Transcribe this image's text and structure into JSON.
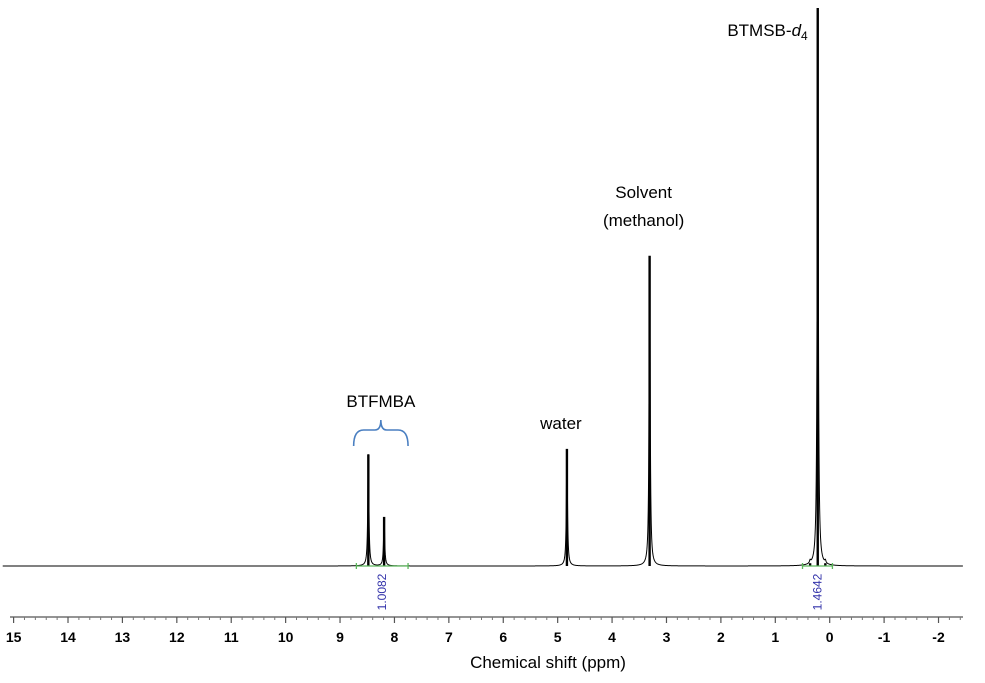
{
  "chart_data": {
    "type": "line",
    "xlabel": "Chemical shift (ppm)",
    "ylabel": "",
    "xlim": [
      15.25,
      -2.45
    ],
    "x_reversed": true,
    "ylim": [
      0,
      1
    ],
    "grid": false,
    "x_ticks": [
      15,
      14,
      13,
      12,
      11,
      10,
      9,
      8,
      7,
      6,
      5,
      4,
      3,
      2,
      1,
      0,
      -1,
      -2
    ],
    "x_tick_labels": [
      "15",
      "14",
      "13",
      "12",
      "11",
      "10",
      "9",
      "8",
      "7",
      "6",
      "5",
      "4",
      "3",
      "2",
      "1",
      "0",
      "-1",
      "-2"
    ],
    "peaks": [
      {
        "x": 8.48,
        "y": 0.2,
        "label": ""
      },
      {
        "x": 8.19,
        "y": 0.088,
        "label": ""
      },
      {
        "x": 4.83,
        "y": 0.21,
        "label": ""
      },
      {
        "x": 3.31,
        "y": 0.556,
        "label": ""
      },
      {
        "x": 0.36,
        "y": 0.005,
        "label": ""
      },
      {
        "x": 0.22,
        "y": 1.0,
        "label": ""
      },
      {
        "x": 0.08,
        "y": 0.005,
        "label": ""
      }
    ],
    "annotations": [
      {
        "text": "BTMSB-",
        "italic_suffix": "d",
        "subscript": "4",
        "x": 0.22
      },
      {
        "text": "Solvent",
        "x": 3.31
      },
      {
        "text": "(methanol)",
        "x": 3.31
      },
      {
        "text": "water",
        "x": 4.83
      },
      {
        "text": "BTFMBA",
        "x": 8.33
      }
    ],
    "integrals": [
      {
        "from": 8.7,
        "to": 7.75,
        "value": "1.0082",
        "color": "#3333aa",
        "bracket_color": "#5cb85c"
      },
      {
        "from": 0.5,
        "to": -0.05,
        "value": "1.4642",
        "color": "#3333aa",
        "bracket_color": "#5cb85c"
      }
    ],
    "colors": {
      "spectrum": "#000000",
      "brace": "#4a7fc1",
      "integral_text": "#3333aa",
      "integral_bracket": "#5cb85c"
    }
  }
}
